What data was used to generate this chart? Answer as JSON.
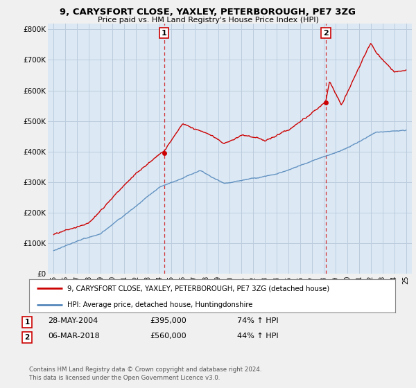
{
  "title": "9, CARYSFORT CLOSE, YAXLEY, PETERBOROUGH, PE7 3ZG",
  "subtitle": "Price paid vs. HM Land Registry's House Price Index (HPI)",
  "ylim": [
    0,
    820000
  ],
  "yticks": [
    0,
    100000,
    200000,
    300000,
    400000,
    500000,
    600000,
    700000,
    800000
  ],
  "ytick_labels": [
    "£0",
    "£100K",
    "£200K",
    "£300K",
    "£400K",
    "£500K",
    "£600K",
    "£700K",
    "£800K"
  ],
  "background_color": "#f0f0f0",
  "plot_bg_color": "#dce9f5",
  "grid_color": "#bbccdd",
  "transaction1_date_num": 2004.41,
  "transaction1_price": 395000,
  "transaction1_date_str": "28-MAY-2004",
  "transaction1_price_str": "£395,000",
  "transaction1_hpi": "74% ↑ HPI",
  "transaction2_date_num": 2018.17,
  "transaction2_price": 560000,
  "transaction2_date_str": "06-MAR-2018",
  "transaction2_price_str": "£560,000",
  "transaction2_hpi": "44% ↑ HPI",
  "red_line_color": "#cc0000",
  "blue_line_color": "#5588bb",
  "legend1_label": "9, CARYSFORT CLOSE, YAXLEY, PETERBOROUGH, PE7 3ZG (detached house)",
  "legend2_label": "HPI: Average price, detached house, Huntingdonshire",
  "footer": "Contains HM Land Registry data © Crown copyright and database right 2024.\nThis data is licensed under the Open Government Licence v3.0.",
  "xlim_start": 1994.5,
  "xlim_end": 2025.5
}
